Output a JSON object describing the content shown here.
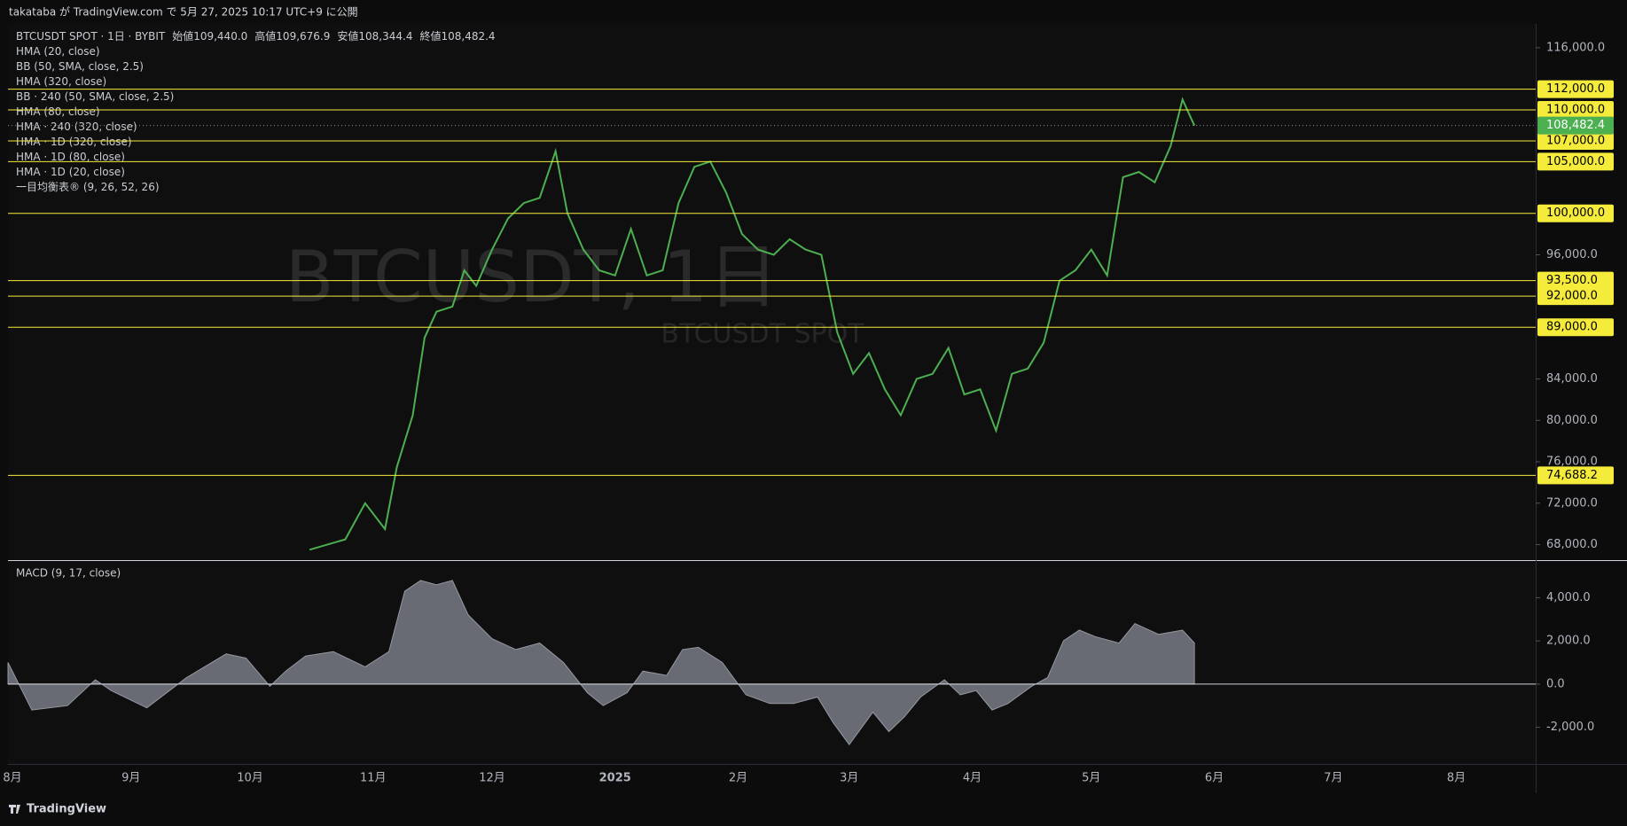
{
  "header": {
    "publish": "takataba が TradingView.com で 5月 27, 2025 10:17 UTC+9 に公開"
  },
  "symbol_line": {
    "symbol": "BTCUSDT SPOT · 1日 · BYBIT",
    "open_label": "始値",
    "open": "109,440.0",
    "high_label": "高値",
    "high": "109,676.9",
    "low_label": "安値",
    "low": "108,344.4",
    "close_label": "終値",
    "close": "108,482.4"
  },
  "indicators": [
    "HMA (20, close)",
    "BB (50, SMA, close, 2.5)",
    "HMA (320, close)",
    "BB · 240 (50, SMA, close, 2.5)",
    "HMA (80, close)",
    "HMA · 240 (320, close)",
    "HMA · 1D (320, close)",
    "HMA · 1D (80, close)",
    "HMA · 1D (20, close)",
    "一目均衡表® (9, 26, 52, 26)"
  ],
  "watermark": {
    "main": "BTCUSDT, 1日",
    "sub": "BTCUSDT SPOT"
  },
  "price_pane": {
    "type": "line",
    "color": "#4caf50",
    "xlim": [
      "2024-08-01",
      "2025-08-21"
    ],
    "ylim": [
      66500,
      118300
    ],
    "yticks": [
      {
        "value": 116000,
        "label": "116,000.0"
      },
      {
        "value": 96000,
        "label": "96,000.0"
      },
      {
        "value": 84000,
        "label": "84,000.0"
      },
      {
        "value": 80000,
        "label": "80,000.0"
      },
      {
        "value": 76000,
        "label": "76,000.0"
      },
      {
        "value": 72000,
        "label": "72,000.0"
      },
      {
        "value": 68000,
        "label": "68,000.0"
      }
    ],
    "levels": [
      {
        "value": 112000,
        "label": "112,000.0"
      },
      {
        "value": 110000,
        "label": "110,000.0"
      },
      {
        "value": 107000,
        "label": "107,000.0"
      },
      {
        "value": 105000,
        "label": "105,000.0"
      },
      {
        "value": 100000,
        "label": "100,000.0"
      },
      {
        "value": 93500,
        "label": "93,500.0"
      },
      {
        "value": 92000,
        "label": "92,000.0"
      },
      {
        "value": 89000,
        "label": "89,000.0"
      },
      {
        "value": 74688.2,
        "label": "74,688.2"
      }
    ],
    "level_color": "#f5eb3b",
    "current": {
      "value": 108482.4,
      "label": "108,482.4",
      "color": "#4caf50"
    },
    "x": [
      "2024-10-16",
      "2024-10-25",
      "2024-10-30",
      "2024-11-04",
      "2024-11-07",
      "2024-11-11",
      "2024-11-14",
      "2024-11-17",
      "2024-11-21",
      "2024-11-24",
      "2024-11-27",
      "2024-12-01",
      "2024-12-05",
      "2024-12-09",
      "2024-12-13",
      "2024-12-17",
      "2024-12-20",
      "2024-12-24",
      "2024-12-28",
      "2025-01-01",
      "2025-01-05",
      "2025-01-09",
      "2025-01-13",
      "2025-01-17",
      "2025-01-21",
      "2025-01-25",
      "2025-01-29",
      "2025-02-02",
      "2025-02-06",
      "2025-02-10",
      "2025-02-14",
      "2025-02-18",
      "2025-02-22",
      "2025-02-26",
      "2025-03-02",
      "2025-03-06",
      "2025-03-10",
      "2025-03-14",
      "2025-03-18",
      "2025-03-22",
      "2025-03-26",
      "2025-03-30",
      "2025-04-03",
      "2025-04-07",
      "2025-04-11",
      "2025-04-15",
      "2025-04-19",
      "2025-04-23",
      "2025-04-27",
      "2025-05-01",
      "2025-05-05",
      "2025-05-09",
      "2025-05-13",
      "2025-05-17",
      "2025-05-21",
      "2025-05-24",
      "2025-05-27"
    ],
    "values": [
      67500,
      68500,
      72000,
      69500,
      75500,
      80500,
      88000,
      90500,
      91000,
      94500,
      93000,
      96500,
      99500,
      101000,
      101500,
      106000,
      100000,
      96500,
      94500,
      94000,
      98500,
      94000,
      94500,
      101000,
      104500,
      105000,
      102000,
      98000,
      96500,
      96000,
      97500,
      96500,
      96000,
      88500,
      84500,
      86500,
      83000,
      80500,
      84000,
      84500,
      87000,
      82500,
      83000,
      79000,
      84500,
      85000,
      87500,
      93500,
      94500,
      96500,
      94000,
      103500,
      104000,
      103000,
      106500,
      111000,
      108482.4
    ]
  },
  "macd_pane": {
    "type": "area",
    "title": "MACD (9, 17, close)",
    "color": "#787b86",
    "ylim": [
      -3700,
      5700
    ],
    "yticks": [
      {
        "value": 4000,
        "label": "4,000.0"
      },
      {
        "value": 2000,
        "label": "2,000.0"
      },
      {
        "value": 0,
        "label": "0.0"
      },
      {
        "value": -2000,
        "label": "-2,000.0"
      }
    ],
    "x": [
      "2024-08-01",
      "2024-08-07",
      "2024-08-16",
      "2024-08-23",
      "2024-08-27",
      "2024-09-05",
      "2024-09-15",
      "2024-09-25",
      "2024-09-30",
      "2024-10-06",
      "2024-10-10",
      "2024-10-15",
      "2024-10-22",
      "2024-10-30",
      "2024-11-05",
      "2024-11-09",
      "2024-11-13",
      "2024-11-17",
      "2024-11-21",
      "2024-11-25",
      "2024-12-01",
      "2024-12-07",
      "2024-12-13",
      "2024-12-19",
      "2024-12-25",
      "2024-12-29",
      "2025-01-04",
      "2025-01-08",
      "2025-01-14",
      "2025-01-18",
      "2025-01-22",
      "2025-01-28",
      "2025-02-03",
      "2025-02-09",
      "2025-02-15",
      "2025-02-21",
      "2025-02-25",
      "2025-03-01",
      "2025-03-07",
      "2025-03-11",
      "2025-03-15",
      "2025-03-19",
      "2025-03-25",
      "2025-03-29",
      "2025-04-02",
      "2025-04-06",
      "2025-04-10",
      "2025-04-16",
      "2025-04-20",
      "2025-04-24",
      "2025-04-28",
      "2025-05-02",
      "2025-05-08",
      "2025-05-12",
      "2025-05-18",
      "2025-05-24",
      "2025-05-27"
    ],
    "values": [
      1000,
      -1200,
      -1000,
      200,
      -300,
      -1100,
      300,
      1400,
      1200,
      -100,
      600,
      1300,
      1500,
      800,
      1500,
      4300,
      4800,
      4600,
      4800,
      3200,
      2100,
      1600,
      1900,
      1000,
      -400,
      -1000,
      -400,
      600,
      400,
      1600,
      1700,
      1000,
      -500,
      -900,
      -900,
      -600,
      -1800,
      -2800,
      -1300,
      -2200,
      -1500,
      -600,
      200,
      -500,
      -300,
      -1200,
      -900,
      -100,
      300,
      2000,
      2500,
      2200,
      1900,
      2800,
      2300,
      2500,
      1900
    ]
  },
  "time_axis": {
    "ticks": [
      {
        "value": "2024-08",
        "label": "8月"
      },
      {
        "value": "2024-09",
        "label": "9月"
      },
      {
        "value": "2024-10",
        "label": "10月"
      },
      {
        "value": "2024-11",
        "label": "11月"
      },
      {
        "value": "2024-12",
        "label": "12月"
      },
      {
        "value": "2025-01",
        "label": "2025"
      },
      {
        "value": "2025-02",
        "label": "2月"
      },
      {
        "value": "2025-03",
        "label": "3月"
      },
      {
        "value": "2025-04",
        "label": "4月"
      },
      {
        "value": "2025-05",
        "label": "5月"
      },
      {
        "value": "2025-06",
        "label": "6月"
      },
      {
        "value": "2025-07",
        "label": "7月"
      },
      {
        "value": "2025-08",
        "label": "8月"
      }
    ]
  },
  "footer": {
    "brand": "TradingView"
  }
}
